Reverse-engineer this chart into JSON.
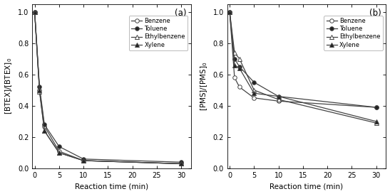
{
  "time_points_a": [
    0,
    1,
    2,
    5,
    10,
    30
  ],
  "time_points_b": [
    0,
    1,
    2,
    5,
    10,
    30
  ],
  "panel_a": {
    "title": "(a)",
    "ylabel": "[BTEX]/[BTEX]$_0$",
    "xlabel": "Reaction time (min)",
    "ylim": [
      0.0,
      1.05
    ],
    "xlim": [
      -0.5,
      32
    ],
    "yticks": [
      0.0,
      0.2,
      0.4,
      0.6,
      0.8,
      1.0
    ],
    "xticks": [
      0,
      5,
      10,
      15,
      20,
      25,
      30
    ],
    "benzene": [
      1.0,
      0.5,
      0.27,
      0.11,
      0.05,
      0.03
    ],
    "toluene": [
      1.0,
      0.52,
      0.28,
      0.14,
      0.06,
      0.04
    ],
    "ethylbenzene": [
      1.0,
      0.49,
      0.24,
      0.1,
      0.05,
      0.03
    ],
    "xylene": [
      1.0,
      0.5,
      0.24,
      0.1,
      0.05,
      0.03
    ]
  },
  "panel_b": {
    "title": "(b)",
    "ylabel": "[PMS]/[PMS]$_0$",
    "xlabel": "Reaction time (min)",
    "ylim": [
      0.0,
      1.05
    ],
    "xlim": [
      -0.5,
      32
    ],
    "yticks": [
      0.0,
      0.2,
      0.4,
      0.6,
      0.8,
      1.0
    ],
    "xticks": [
      0,
      5,
      10,
      15,
      20,
      25,
      30
    ],
    "benzene": [
      1.0,
      0.58,
      0.52,
      0.45,
      0.43,
      0.39
    ],
    "toluene": [
      1.0,
      0.7,
      0.65,
      0.55,
      0.46,
      0.39
    ],
    "ethylbenzene": [
      1.0,
      0.74,
      0.7,
      0.5,
      0.44,
      0.29
    ],
    "xylene": [
      1.0,
      0.66,
      0.64,
      0.48,
      0.46,
      0.3
    ]
  },
  "legend_labels": [
    "Benzene",
    "Toluene",
    "Ethylbenzene",
    "Xylene"
  ],
  "line_color": "#444444",
  "marker_open_color": "white",
  "marker_filled_color": "#222222",
  "marker_size": 4,
  "line_width": 0.9
}
